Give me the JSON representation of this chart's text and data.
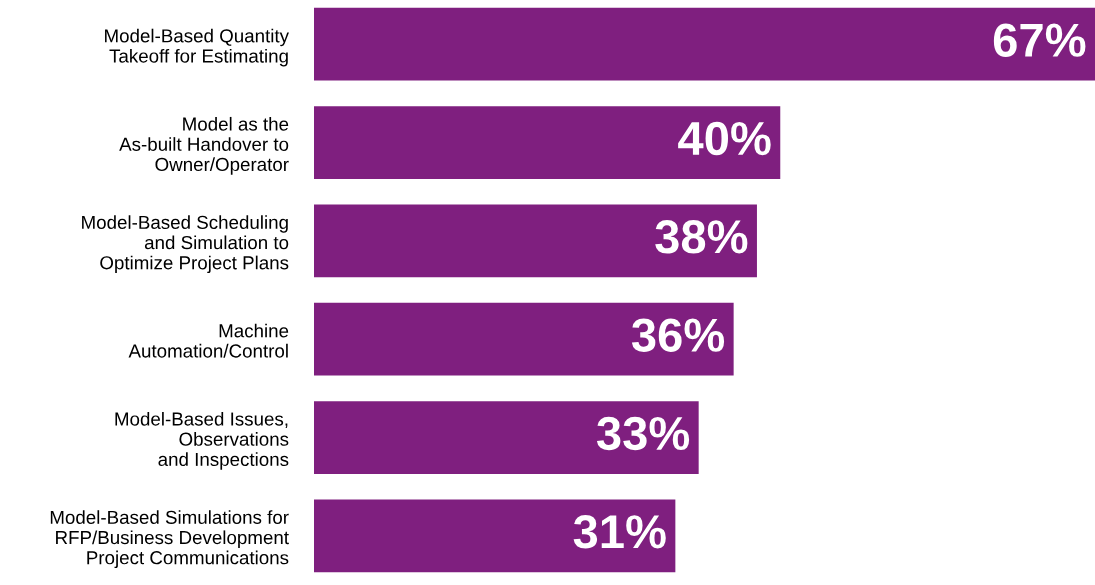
{
  "chart_data": {
    "type": "bar",
    "orientation": "horizontal",
    "categories": [
      "Model-Based Quantity\nTakeoff for Estimating",
      "Model as the\nAs-built Handover to\nOwner/Operator",
      "Model-Based Scheduling\nand Simulation to\nOptimize Project Plans",
      "Machine\nAutomation/Control",
      "Model-Based Issues,\nObservations\nand Inspections",
      "Model-Based Simulations for\nRFP/Business Development\nProject Communications"
    ],
    "values": [
      67,
      40,
      38,
      36,
      33,
      31
    ],
    "value_labels": [
      "67%",
      "40%",
      "38%",
      "36%",
      "33%",
      "31%"
    ],
    "color": "#7f1f7f",
    "tick_labels": "y",
    "grid": false,
    "legend": false
  }
}
